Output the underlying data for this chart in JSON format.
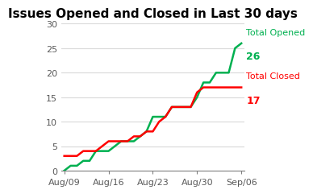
{
  "title": "Issues Opened and Closed in Last 30 days",
  "opened_label": "Total Opened",
  "opened_value": "26",
  "closed_label": "Total Closed",
  "closed_value": "17",
  "opened_color": "#00b050",
  "closed_color": "#ff0000",
  "x_labels": [
    "Aug/09",
    "Aug/16",
    "Aug/23",
    "Aug/30",
    "Sep/06"
  ],
  "x_positions": [
    0,
    7,
    14,
    21,
    28
  ],
  "opened_x": [
    0,
    1,
    2,
    3,
    4,
    5,
    6,
    7,
    8,
    9,
    10,
    11,
    12,
    13,
    14,
    15,
    16,
    17,
    18,
    19,
    20,
    21,
    22,
    23,
    24,
    25,
    26,
    27,
    28
  ],
  "opened_y": [
    0,
    1,
    1,
    2,
    2,
    4,
    4,
    4,
    5,
    6,
    6,
    6,
    7,
    8,
    11,
    11,
    11,
    13,
    13,
    13,
    13,
    15,
    18,
    18,
    20,
    20,
    20,
    25,
    26
  ],
  "closed_x": [
    0,
    1,
    2,
    3,
    4,
    5,
    6,
    7,
    8,
    9,
    10,
    11,
    12,
    13,
    14,
    15,
    16,
    17,
    18,
    19,
    20,
    21,
    22,
    23,
    24,
    25,
    26,
    27,
    28
  ],
  "closed_y": [
    3,
    3,
    3,
    4,
    4,
    4,
    5,
    6,
    6,
    6,
    6,
    7,
    7,
    8,
    8,
    10,
    11,
    13,
    13,
    13,
    13,
    16,
    17,
    17,
    17,
    17,
    17,
    17,
    17
  ],
  "ylim": [
    0,
    30
  ],
  "yticks": [
    0,
    5,
    10,
    15,
    20,
    25,
    30
  ],
  "background_color": "#ffffff",
  "grid_color": "#d9d9d9",
  "title_fontsize": 11,
  "axis_label_fontsize": 8,
  "annotation_label_fontsize": 8,
  "annotation_value_fontsize": 9
}
